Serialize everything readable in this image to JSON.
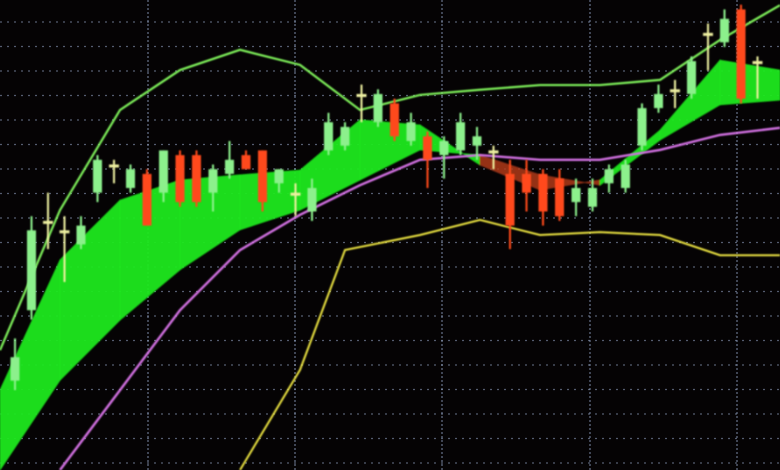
{
  "chart_data": {
    "type": "candlestick",
    "title": "",
    "xlabel": "",
    "ylabel": "",
    "ylim": [
      0,
      100
    ],
    "grid": true,
    "legend": "none",
    "colors": {
      "background": "#050304",
      "grid": "#8a9ab8",
      "up_candle": "#8cf08c",
      "down_candle": "#ff4a1c",
      "doji_candle": "#eef0a0",
      "cloud_bullish": "#1ee81e",
      "cloud_bearish": "#b03a1a",
      "upper_band": "#7ef05a",
      "moving_average": "#d070e0",
      "lower_line": "#e8e040"
    },
    "candles": [
      {
        "o": 19,
        "c": 24,
        "h": 28,
        "l": 17,
        "kind": "up"
      },
      {
        "o": 34,
        "c": 51,
        "h": 54,
        "l": 32,
        "kind": "up"
      },
      {
        "o": 49,
        "c": 53,
        "h": 59,
        "l": 47,
        "kind": "doji"
      },
      {
        "o": 43,
        "c": 51,
        "h": 54,
        "l": 40,
        "kind": "doji"
      },
      {
        "o": 48,
        "c": 52,
        "h": 54,
        "l": 47,
        "kind": "up"
      },
      {
        "o": 59,
        "c": 66,
        "h": 67,
        "l": 57,
        "kind": "up"
      },
      {
        "o": 63,
        "c": 65,
        "h": 66,
        "l": 61,
        "kind": "doji"
      },
      {
        "o": 60,
        "c": 64,
        "h": 65,
        "l": 59,
        "kind": "up"
      },
      {
        "o": 63,
        "c": 52,
        "h": 64,
        "l": 52,
        "kind": "down"
      },
      {
        "o": 59,
        "c": 68,
        "h": 68,
        "l": 57,
        "kind": "up"
      },
      {
        "o": 67,
        "c": 57,
        "h": 68,
        "l": 56,
        "kind": "down"
      },
      {
        "o": 67,
        "c": 57,
        "h": 68,
        "l": 56,
        "kind": "down"
      },
      {
        "o": 59,
        "c": 64,
        "h": 65,
        "l": 55,
        "kind": "up"
      },
      {
        "o": 63,
        "c": 66,
        "h": 70,
        "l": 62,
        "kind": "up"
      },
      {
        "o": 67,
        "c": 64,
        "h": 68,
        "l": 64,
        "kind": "down"
      },
      {
        "o": 68,
        "c": 57,
        "h": 68,
        "l": 55,
        "kind": "down"
      },
      {
        "o": 61,
        "c": 64,
        "h": 64,
        "l": 59,
        "kind": "up"
      },
      {
        "o": 57,
        "c": 59,
        "h": 61,
        "l": 54,
        "kind": "doji"
      },
      {
        "o": 55,
        "c": 60,
        "h": 62,
        "l": 53,
        "kind": "up"
      },
      {
        "o": 68,
        "c": 74,
        "h": 76,
        "l": 67,
        "kind": "up"
      },
      {
        "o": 69,
        "c": 73,
        "h": 74,
        "l": 68,
        "kind": "up"
      },
      {
        "o": 77,
        "c": 80,
        "h": 82,
        "l": 74,
        "kind": "doji"
      },
      {
        "o": 74,
        "c": 80,
        "h": 81,
        "l": 73,
        "kind": "up"
      },
      {
        "o": 78,
        "c": 71,
        "h": 79,
        "l": 70,
        "kind": "down"
      },
      {
        "o": 70,
        "c": 74,
        "h": 76,
        "l": 69,
        "kind": "up"
      },
      {
        "o": 71,
        "c": 66,
        "h": 72,
        "l": 60,
        "kind": "down"
      },
      {
        "o": 67,
        "c": 70,
        "h": 71,
        "l": 62,
        "kind": "up"
      },
      {
        "o": 68,
        "c": 74,
        "h": 76,
        "l": 67,
        "kind": "up"
      },
      {
        "o": 69,
        "c": 71,
        "h": 73,
        "l": 66,
        "kind": "up"
      },
      {
        "o": 68,
        "c": 67,
        "h": 69,
        "l": 64,
        "kind": "doji"
      },
      {
        "o": 63,
        "c": 52,
        "h": 66,
        "l": 47,
        "kind": "down"
      },
      {
        "o": 63,
        "c": 59,
        "h": 66,
        "l": 55,
        "kind": "down"
      },
      {
        "o": 63,
        "c": 55,
        "h": 64,
        "l": 52,
        "kind": "down"
      },
      {
        "o": 62,
        "c": 54,
        "h": 64,
        "l": 53,
        "kind": "down"
      },
      {
        "o": 57,
        "c": 60,
        "h": 62,
        "l": 54,
        "kind": "up"
      },
      {
        "o": 56,
        "c": 60,
        "h": 62,
        "l": 55,
        "kind": "up"
      },
      {
        "o": 61,
        "c": 64,
        "h": 65,
        "l": 59,
        "kind": "up"
      },
      {
        "o": 60,
        "c": 65,
        "h": 66,
        "l": 59,
        "kind": "up"
      },
      {
        "o": 69,
        "c": 77,
        "h": 78,
        "l": 68,
        "kind": "up"
      },
      {
        "o": 77,
        "c": 80,
        "h": 82,
        "l": 76,
        "kind": "up"
      },
      {
        "o": 78,
        "c": 81,
        "h": 83,
        "l": 77,
        "kind": "doji"
      },
      {
        "o": 80,
        "c": 87,
        "h": 88,
        "l": 79,
        "kind": "up"
      },
      {
        "o": 86,
        "c": 93,
        "h": 95,
        "l": 85,
        "kind": "doji"
      },
      {
        "o": 91,
        "c": 96,
        "h": 98,
        "l": 90,
        "kind": "up"
      },
      {
        "o": 98,
        "c": 79,
        "h": 99,
        "l": 78,
        "kind": "down"
      },
      {
        "o": 87,
        "c": 81,
        "h": 88,
        "l": 79,
        "kind": "doji"
      }
    ],
    "bands_x": [
      0,
      1,
      2,
      3,
      4,
      5,
      6,
      7,
      8,
      9,
      10,
      11,
      12,
      13
    ],
    "upper_band": [
      25.5,
      55.3,
      76.6,
      85.1,
      89.4,
      86.2,
      76.6,
      79.8,
      80.9,
      81.9,
      81.9,
      83,
      91.5,
      98.9
    ],
    "cloud_top": [
      17,
      44.7,
      57.4,
      61.7,
      62.8,
      63.8,
      74.5,
      73.4,
      64.9,
      59.6,
      61.7,
      72.3,
      87.2,
      85.1
    ],
    "cloud_bottom": [
      0,
      19.1,
      31.9,
      42.6,
      51.1,
      55.3,
      61.7,
      68.1,
      67,
      62.8,
      60.6,
      70.2,
      77.7,
      78.7
    ],
    "moving_average": [
      null,
      0,
      17,
      34,
      46.8,
      54.3,
      60.6,
      66,
      67,
      66,
      66,
      68.1,
      71.3,
      72.8
    ],
    "lower_line_x": [
      4,
      5,
      5.75,
      7,
      8,
      9,
      10,
      11,
      12,
      13
    ],
    "lower_line": [
      0,
      21.3,
      46.8,
      50,
      53.2,
      50,
      50.6,
      50,
      45.7,
      45.7
    ]
  }
}
